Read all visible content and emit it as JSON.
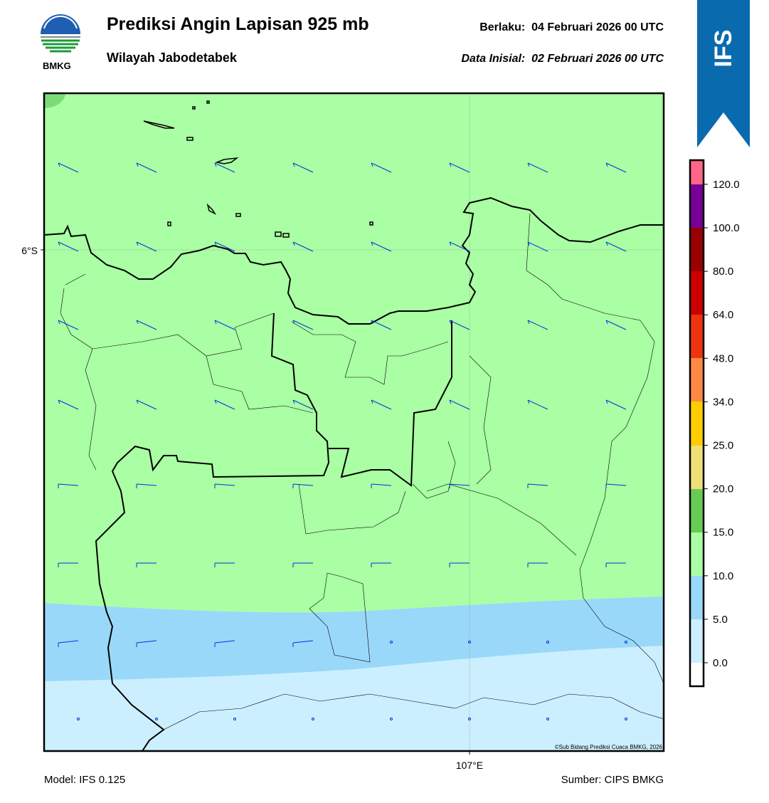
{
  "header": {
    "logo_text": "BMKG",
    "title": "Prediksi Angin Lapisan 925 mb",
    "subtitle": "Wilayah Jabodetabek",
    "valid": "Berlaku:  04 Februari 2026 00 UTC",
    "initial": "Data Inisial:  02 Februari 2026 00 UTC",
    "badge": "IFS"
  },
  "map": {
    "lat_label": "6°S",
    "lon_label": "107°E",
    "copyright": "©Sub Bidang Prediksi Cuaca BMKG, 2026"
  },
  "colorbar": {
    "labels": [
      "0.0",
      "5.0",
      "10.0",
      "15.0",
      "20.0",
      "25.0",
      "34.0",
      "48.0",
      "64.0",
      "80.0",
      "100.0",
      "120.0"
    ]
  },
  "footer": {
    "model": "Model: IFS 0.125",
    "source": "Sumber: CIPS BMKG"
  }
}
